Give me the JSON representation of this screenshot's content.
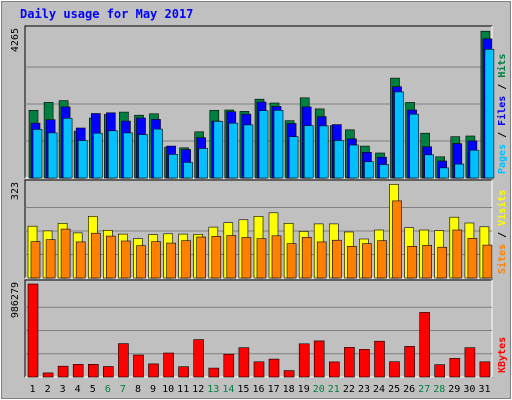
{
  "title": "Daily usage for May 2017",
  "colors": {
    "background": "#c0c0c0",
    "panel": "#c0c0c0",
    "hits": "#008040",
    "files": "#0000ff",
    "pages": "#00c0ff",
    "visits": "#ffff00",
    "sites": "#ff8000",
    "kbytes": "#ff0000",
    "title": "#0000ff",
    "weekend_label": "#008040",
    "weekday_label": "#000000"
  },
  "chart_data": [
    {
      "type": "bar",
      "panel": "top",
      "categories": [
        "1",
        "2",
        "3",
        "4",
        "5",
        "6",
        "7",
        "8",
        "9",
        "10",
        "11",
        "12",
        "13",
        "14",
        "15",
        "16",
        "17",
        "18",
        "19",
        "20",
        "21",
        "22",
        "23",
        "24",
        "25",
        "26",
        "27",
        "28",
        "29",
        "30",
        "31"
      ],
      "weekend": [
        6,
        7,
        13,
        14,
        20,
        21,
        27,
        28
      ],
      "ymax_label": "4265",
      "ylim": [
        0,
        4265
      ],
      "series": [
        {
          "name": "Hits",
          "values": [
            1950,
            2180,
            2230,
            1350,
            1730,
            1830,
            1900,
            1810,
            1850,
            890,
            870,
            1330,
            1950,
            1960,
            1920,
            2270,
            2160,
            1650,
            2310,
            1990,
            1510,
            1390,
            920,
            720,
            2880,
            2180,
            1290,
            610,
            1190,
            1210,
            4230
          ]
        },
        {
          "name": "Files",
          "values": [
            1580,
            1680,
            2050,
            1440,
            1860,
            1880,
            1640,
            1730,
            1690,
            920,
            820,
            1160,
            1640,
            1910,
            1840,
            2190,
            2060,
            1570,
            2050,
            1770,
            1540,
            1130,
            740,
            600,
            2630,
            1960,
            900,
            490,
            990,
            1070,
            4010
          ]
        },
        {
          "name": "Pages",
          "values": [
            1400,
            1300,
            1720,
            1080,
            1290,
            1360,
            1300,
            1250,
            1410,
            680,
            450,
            850,
            1630,
            1580,
            1530,
            1940,
            1950,
            1190,
            1510,
            1500,
            1080,
            950,
            470,
            390,
            2480,
            1840,
            670,
            290,
            400,
            800,
            3710
          ]
        }
      ],
      "side_labels": [
        "Pages",
        "Files",
        "Hits"
      ]
    },
    {
      "type": "bar",
      "panel": "middle",
      "categories": [
        "1",
        "2",
        "3",
        "4",
        "5",
        "6",
        "7",
        "8",
        "9",
        "10",
        "11",
        "12",
        "13",
        "14",
        "15",
        "16",
        "17",
        "18",
        "19",
        "20",
        "21",
        "22",
        "23",
        "24",
        "25",
        "26",
        "27",
        "28",
        "29",
        "30",
        "31"
      ],
      "ymax_label": "323",
      "ylim": [
        0,
        323
      ],
      "series": [
        {
          "name": "Visits",
          "values": [
            178,
            162,
            188,
            155,
            212,
            164,
            151,
            135,
            149,
            152,
            151,
            150,
            175,
            190,
            200,
            212,
            224,
            188,
            160,
            186,
            186,
            158,
            134,
            165,
            322,
            173,
            165,
            163,
            209,
            189,
            176
          ]
        },
        {
          "name": "Sites",
          "values": [
            125,
            132,
            168,
            124,
            154,
            144,
            127,
            111,
            125,
            120,
            128,
            141,
            143,
            146,
            139,
            135,
            145,
            118,
            140,
            124,
            130,
            109,
            118,
            128,
            265,
            109,
            112,
            106,
            165,
            136,
            113
          ]
        }
      ],
      "side_labels": [
        "Sites",
        "Visits"
      ]
    },
    {
      "type": "bar",
      "panel": "bottom",
      "categories": [
        "1",
        "2",
        "3",
        "4",
        "5",
        "6",
        "7",
        "8",
        "9",
        "10",
        "11",
        "12",
        "13",
        "14",
        "15",
        "16",
        "17",
        "18",
        "19",
        "20",
        "21",
        "22",
        "23",
        "24",
        "25",
        "26",
        "27",
        "28",
        "29",
        "30",
        "31"
      ],
      "ymax_label": "986279",
      "ylim": [
        0,
        986279
      ],
      "series": [
        {
          "name": "KBytes",
          "values": [
            986279,
            44000,
            115000,
            135000,
            135000,
            111000,
            354000,
            233000,
            139000,
            254000,
            109000,
            397000,
            94000,
            242000,
            311000,
            161000,
            190000,
            68000,
            352000,
            383000,
            160000,
            314000,
            293000,
            380000,
            162000,
            324000,
            685000,
            130000,
            197000,
            311000,
            161000
          ]
        }
      ],
      "side_labels": [
        "KBytes"
      ]
    }
  ]
}
